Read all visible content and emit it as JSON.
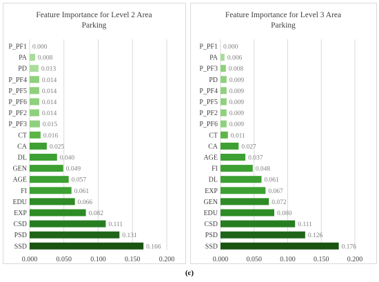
{
  "caption": "(c)",
  "chart_data": [
    {
      "type": "bar",
      "orientation": "horizontal",
      "title": "Feature Importance for Level 2 Area Parking",
      "title_lines": [
        "Feature Importance for Level 2 Area",
        "Parking"
      ],
      "categories": [
        "P_PF1",
        "PA",
        "PD",
        "P_PF4",
        "P_PF5",
        "P_PF6",
        "P_PF2",
        "P_PF3",
        "CT",
        "CA",
        "DL",
        "GEN",
        "AGE",
        "FI",
        "EDU",
        "EXP",
        "CSD",
        "PSD",
        "SSD"
      ],
      "values": [
        0.0,
        0.008,
        0.013,
        0.014,
        0.014,
        0.014,
        0.014,
        0.015,
        0.016,
        0.025,
        0.04,
        0.049,
        0.057,
        0.061,
        0.066,
        0.082,
        0.111,
        0.131,
        0.166
      ],
      "value_labels": [
        "0.000",
        "0.008",
        "0.013",
        "0.014",
        "0.014",
        "0.014",
        "0.014",
        "0.015",
        "0.016",
        "0.025",
        "0.040",
        "0.049",
        "0.057",
        "0.061",
        "0.066",
        "0.082",
        "0.111",
        "0.131",
        "0.166"
      ],
      "xlim": [
        0,
        0.2
      ],
      "xticks": [
        "0.000",
        "0.050",
        "0.100",
        "0.150",
        "0.200"
      ],
      "grid": true,
      "colors": [
        "#a9dd9a",
        "#a9dd9a",
        "#a9dd9a",
        "#8fd07d",
        "#8fd07d",
        "#8fd07d",
        "#8fd07d",
        "#8fd07d",
        "#5db548",
        "#3da032",
        "#3da032",
        "#3da032",
        "#3da032",
        "#3da032",
        "#2e8b25",
        "#2e8b25",
        "#277d21",
        "#1f6418",
        "#1a5413"
      ]
    },
    {
      "type": "bar",
      "orientation": "horizontal",
      "title": "Feature Importance for Level 3 Area Parking",
      "title_lines": [
        "Feature Importance for Level 3 Area",
        "Parking"
      ],
      "categories": [
        "P_PF1",
        "PA",
        "P_PF3",
        "PD",
        "P_PF4",
        "P_PF5",
        "P_PF2",
        "P_PF6",
        "CT",
        "CA",
        "AGE",
        "FI",
        "DL",
        "EXP",
        "GEN",
        "EDU",
        "CSD",
        "PSD",
        "SSD"
      ],
      "values": [
        0.0,
        0.006,
        0.008,
        0.009,
        0.009,
        0.009,
        0.009,
        0.009,
        0.011,
        0.027,
        0.037,
        0.048,
        0.061,
        0.067,
        0.072,
        0.08,
        0.111,
        0.126,
        0.176
      ],
      "value_labels": [
        "0.000",
        "0.006",
        "0.008",
        "0.009",
        "0.009",
        "0.009",
        "0.009",
        "0.009",
        "0.011",
        "0.027",
        "0.037",
        "0.048",
        "0.061",
        "0.067",
        "0.072",
        "0.080",
        "0.111",
        "0.126",
        "0.176"
      ],
      "xlim": [
        0,
        0.2
      ],
      "xticks": [
        "0.000",
        "0.050",
        "0.100",
        "0.150",
        "0.200"
      ],
      "grid": true,
      "colors": [
        "#a9dd9a",
        "#a9dd9a",
        "#8fd07d",
        "#8fd07d",
        "#8fd07d",
        "#8fd07d",
        "#8fd07d",
        "#8fd07d",
        "#5db548",
        "#3da032",
        "#3da032",
        "#3da032",
        "#3da032",
        "#3da032",
        "#2e8b25",
        "#2e8b25",
        "#277d21",
        "#1f6418",
        "#1a5413"
      ]
    }
  ]
}
